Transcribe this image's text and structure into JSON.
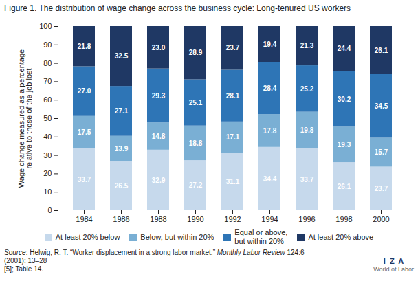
{
  "chart_data": {
    "type": "bar",
    "stacked": true,
    "data_labels": true,
    "grid": false,
    "legend": "bottom",
    "title": "Figure 1. The distribution of wage change across the business cycle: Long-tenured US workers",
    "ylabel": "Wage change measured as a percentage\nrelative to those of the job lost",
    "categories": [
      "1984",
      "1986",
      "1988",
      "1990",
      "1992",
      "1994",
      "1996",
      "1998",
      "2000"
    ],
    "series": [
      {
        "name": "At least 20% below",
        "color": "#c6d9ec",
        "values": [
          33.7,
          26.5,
          32.9,
          27.2,
          31.1,
          34.4,
          33.7,
          26.1,
          23.7
        ],
        "value_labels": [
          "33.7",
          "26.5",
          "32.9",
          "27.2",
          "31.1",
          "34.4",
          "33.7",
          "26.1",
          "23.7"
        ]
      },
      {
        "name": "Below, but within 20%",
        "color": "#7aafd4",
        "values": [
          17.5,
          13.9,
          14.8,
          18.8,
          17.1,
          17.8,
          19.8,
          19.3,
          15.7
        ],
        "value_labels": [
          "17.5",
          "13.9",
          "14.8",
          "18.8",
          "17.1",
          "17.8",
          "19.8",
          "19.3",
          "15.7"
        ]
      },
      {
        "name": "Equal or above,\nbut within 20%",
        "color": "#2e75b6",
        "values": [
          27.0,
          27.1,
          29.3,
          25.1,
          28.1,
          28.4,
          25.2,
          30.2,
          34.5
        ],
        "value_labels": [
          "27.0",
          "27.1",
          "29.3",
          "25.1",
          "28.1",
          "28.4",
          "25.2",
          "30.2",
          "34.5"
        ]
      },
      {
        "name": "At least 20% above",
        "color": "#1f3864",
        "values": [
          21.8,
          32.5,
          23.0,
          28.9,
          23.7,
          19.4,
          21.3,
          24.4,
          26.1
        ],
        "value_labels": [
          "21.8",
          "32.5",
          "23.0",
          "28.9",
          "23.7",
          "19.4",
          "21.3",
          "24.4",
          "26.1"
        ]
      }
    ],
    "ylim": [
      0,
      100
    ],
    "yticks": [
      0,
      10,
      20,
      30,
      40,
      50,
      60,
      70,
      80,
      90,
      100
    ],
    "annotations": [
      "Source",
      ": Helwig, R. T. “Worker displacement in a strong labor market.” ",
      "Monthly Labor Review",
      " 124:6 (2001): 13–28\n[5]; Table 14.",
      "I  Z  A",
      "World of Labor"
    ]
  }
}
